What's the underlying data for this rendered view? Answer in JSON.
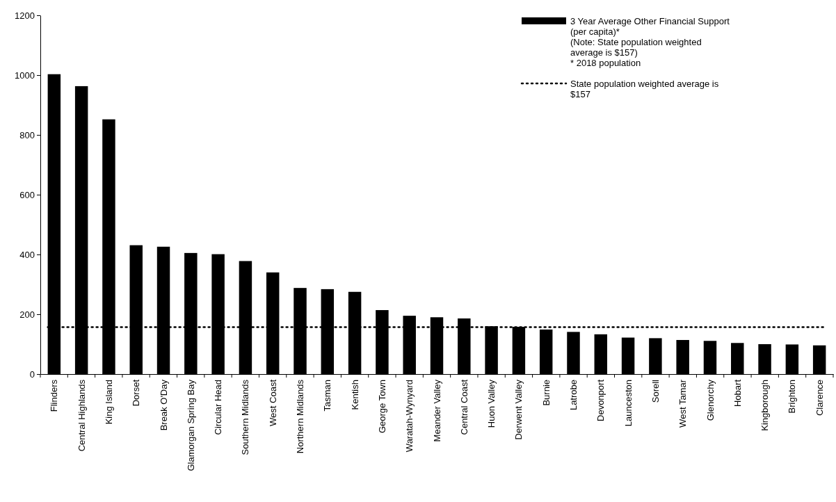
{
  "chart_data": {
    "type": "bar",
    "categories": [
      "Flinders",
      "Central Highlands",
      "King Island",
      "Dorset",
      "Break O'Day",
      "Glamorgan Spring Bay",
      "Circular Head",
      "Southern Midlands",
      "West Coast",
      "Northern Midlands",
      "Tasman",
      "Kentish",
      "George Town",
      "Waratah-Wynyard",
      "Meander Valley",
      "Central Coast",
      "Huon Valley",
      "Derwent Valley",
      "Burnie",
      "Latrobe",
      "Devonport",
      "Launceston",
      "Sorell",
      "West Tamar",
      "Glenorchy",
      "Hobart",
      "Kingborough",
      "Brighton",
      "Clarence"
    ],
    "series": [
      {
        "name": "3 Year Average Other Financial Support\n(per capita)*\n(Note: State population weighted\naverage is $157)\n* 2018 population",
        "color": "#000000",
        "values": [
          1003,
          963,
          852,
          431,
          426,
          405,
          401,
          378,
          340,
          288,
          284,
          275,
          214,
          195,
          190,
          186,
          160,
          158,
          149,
          141,
          133,
          122,
          120,
          114,
          111,
          104,
          100,
          99,
          96
        ]
      }
    ],
    "ref_lines": [
      {
        "axis": "y",
        "value": 157,
        "label": "State population weighted average is\n$157",
        "color": "#000000",
        "line_style": "dotted"
      }
    ],
    "ylim": [
      0,
      1200
    ],
    "yticks": [
      0,
      200,
      400,
      600,
      800,
      1000,
      1200
    ],
    "grid": false,
    "legend": "top right"
  }
}
